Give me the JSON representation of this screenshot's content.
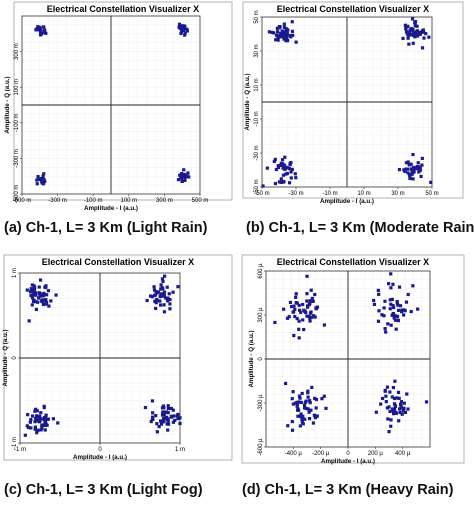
{
  "chart_data": [
    {
      "type": "scatter",
      "title": "Electrical Constellation Visualizer X",
      "caption": "(a) Ch-1, L= 3 Km (Light Rain)",
      "xlabel": "Amplitude - I (a.u.)",
      "ylabel": "Amplitude - Q (a.u.)",
      "xlim": [
        -500,
        500
      ],
      "ylim": [
        -500,
        500
      ],
      "xticks": [
        {
          "v": -500,
          "label": "-500 m"
        },
        {
          "v": -300,
          "label": "-300 m"
        },
        {
          "v": -100,
          "label": "-100 m"
        },
        {
          "v": 100,
          "label": "100 m"
        },
        {
          "v": 300,
          "label": "300 m"
        },
        {
          "v": 500,
          "label": "500 m"
        }
      ],
      "yticks": [
        {
          "v": -500,
          "label": "-500 m"
        },
        {
          "v": -300,
          "label": "-300 m"
        },
        {
          "v": -100,
          "label": "-100 m"
        },
        {
          "v": 100,
          "label": "100 m"
        },
        {
          "v": 300,
          "label": "300 m"
        }
      ],
      "clusters": [
        {
          "cx": -390,
          "cy": 420,
          "sx": 14,
          "sy": 16,
          "n": 20
        },
        {
          "cx": 400,
          "cy": 430,
          "sx": 14,
          "sy": 15,
          "n": 20
        },
        {
          "cx": -390,
          "cy": -420,
          "sx": 14,
          "sy": 16,
          "n": 20
        },
        {
          "cx": 400,
          "cy": -405,
          "sx": 14,
          "sy": 18,
          "n": 22
        }
      ],
      "marker_color": "#1a1a8e"
    },
    {
      "type": "scatter",
      "title": "Electrical Constellation Visualizer X",
      "caption": "(b) Ch-1, L= 3 Km (Moderate Rain)",
      "xlabel": "Amplitude - I (a.u.)",
      "ylabel": "Amplitude - Q (a.u.)",
      "xlim": [
        -50,
        50
      ],
      "ylim": [
        -50,
        50
      ],
      "xticks": [
        {
          "v": -50,
          "label": "-50 m"
        },
        {
          "v": -30,
          "label": "-30 m"
        },
        {
          "v": -10,
          "label": "-10 m"
        },
        {
          "v": 10,
          "label": "10 m"
        },
        {
          "v": 30,
          "label": "30 m"
        },
        {
          "v": 50,
          "label": "50 m"
        }
      ],
      "yticks": [
        {
          "v": -50,
          "label": "-50 m"
        },
        {
          "v": -30,
          "label": "-30 m"
        },
        {
          "v": -10,
          "label": "-10 m"
        },
        {
          "v": 10,
          "label": "10 m"
        },
        {
          "v": 30,
          "label": "30 m"
        },
        {
          "v": 50,
          "label": "50 m"
        }
      ],
      "clusters": [
        {
          "cx": -38,
          "cy": 40,
          "sx": 3.5,
          "sy": 3,
          "n": 45
        },
        {
          "cx": 39,
          "cy": 40,
          "sx": 3.5,
          "sy": 3,
          "n": 45
        },
        {
          "cx": -38,
          "cy": -40,
          "sx": 3.5,
          "sy": 3.5,
          "n": 40
        },
        {
          "cx": 39,
          "cy": -40,
          "sx": 3.5,
          "sy": 3.5,
          "n": 40
        }
      ],
      "marker_color": "#1a1a8e"
    },
    {
      "type": "scatter",
      "title": "Electrical Constellation Visualizer X",
      "caption": "(c) Ch-1, L= 3 Km (Light Fog)",
      "xlabel": "Amplitude - I (a.u.)",
      "ylabel": "Amplitude - Q (a.u.)",
      "xlim": [
        -1,
        1
      ],
      "ylim": [
        -1,
        1
      ],
      "xticks": [
        {
          "v": -1,
          "label": "-1 m"
        },
        {
          "v": 0,
          "label": "0"
        },
        {
          "v": 1,
          "label": "1 m"
        }
      ],
      "yticks": [
        {
          "v": -1,
          "label": "-1 m"
        },
        {
          "v": 0,
          "label": "0"
        },
        {
          "v": 1,
          "label": "1 m"
        }
      ],
      "clusters": [
        {
          "cx": -0.75,
          "cy": 0.75,
          "sx": 0.09,
          "sy": 0.09,
          "n": 50
        },
        {
          "cx": 0.76,
          "cy": 0.74,
          "sx": 0.07,
          "sy": 0.09,
          "n": 45
        },
        {
          "cx": -0.74,
          "cy": -0.73,
          "sx": 0.09,
          "sy": 0.07,
          "n": 50
        },
        {
          "cx": 0.8,
          "cy": -0.7,
          "sx": 0.09,
          "sy": 0.07,
          "n": 50
        }
      ],
      "marker_color": "#1a1a8e"
    },
    {
      "type": "scatter",
      "title": "Electrical Constellation Visualizer X",
      "caption": "(d) Ch-1, L= 3 Km (Heavy Rain)",
      "xlabel": "Amplitude - I (a.u.)",
      "ylabel": "Amplitude - Q (a.u.)",
      "xlim": [
        -600,
        600
      ],
      "ylim": [
        -600,
        600
      ],
      "xticks": [
        {
          "v": -400,
          "label": "-400 µ"
        },
        {
          "v": -200,
          "label": "-200 µ"
        },
        {
          "v": 0,
          "label": "0"
        },
        {
          "v": 200,
          "label": "200 µ"
        },
        {
          "v": 400,
          "label": "400 µ"
        }
      ],
      "yticks": [
        {
          "v": -600,
          "label": "-600 µ"
        },
        {
          "v": -300,
          "label": "-300 µ"
        },
        {
          "v": 0,
          "label": "0"
        },
        {
          "v": 300,
          "label": "300 µ"
        },
        {
          "v": 600,
          "label": "600 µ"
        }
      ],
      "clusters": [
        {
          "cx": -330,
          "cy": 330,
          "sx": 75,
          "sy": 80,
          "n": 55
        },
        {
          "cx": 340,
          "cy": 360,
          "sx": 70,
          "sy": 75,
          "n": 50
        },
        {
          "cx": -330,
          "cy": -320,
          "sx": 75,
          "sy": 80,
          "n": 55
        },
        {
          "cx": 340,
          "cy": -320,
          "sx": 70,
          "sy": 75,
          "n": 50
        }
      ],
      "marker_color": "#1a1a8e"
    }
  ]
}
